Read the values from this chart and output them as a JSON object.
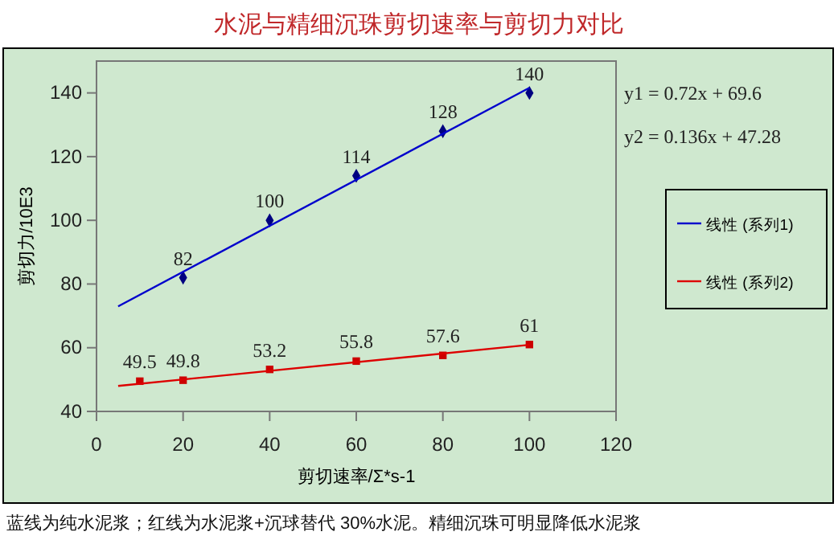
{
  "chart_data": {
    "type": "scatter",
    "title": "水泥与精细沉珠剪切速率与剪切力对比",
    "xlabel": "剪切速率/Σ*s-1",
    "ylabel": "剪切力/10E3",
    "xlim": [
      0,
      120
    ],
    "xticks": [
      0,
      20,
      40,
      60,
      80,
      100,
      120
    ],
    "ylim": [
      40,
      150
    ],
    "yticks": [
      40,
      60,
      80,
      100,
      120,
      140
    ],
    "grid": false,
    "legend": "right",
    "annotations": [
      "y1 = 0.72x + 69.6",
      "y2 = 0.136x + 47.28",
      "蓝线为纯水泥浆；红线为水泥浆+沉球替代 30%水泥。精细沉珠可明显降低水泥浆"
    ],
    "series": [
      {
        "color": "#000080",
        "marker": "diamond",
        "x": [
          20,
          40,
          60,
          80,
          100
        ],
        "values": [
          82,
          100,
          114,
          128,
          140
        ],
        "value_labels": [
          "82",
          "100",
          "114",
          "128",
          "140"
        ]
      },
      {
        "color": "#cc0000",
        "marker": "square",
        "x": [
          10,
          20,
          40,
          60,
          80,
          100
        ],
        "values": [
          49.5,
          49.8,
          53.2,
          55.8,
          57.6,
          61
        ],
        "value_labels": [
          "49.5",
          "49.8",
          "53.2",
          "55.8",
          "57.6",
          "61"
        ]
      },
      {
        "type": "line",
        "name": "线性 (系列1)",
        "color": "#0000cc",
        "marker": "none",
        "x": [
          5,
          100
        ],
        "values": [
          73,
          141.6
        ]
      },
      {
        "type": "line",
        "name": "线性 (系列2)",
        "color": "#dd0000",
        "marker": "none",
        "x": [
          5,
          100
        ],
        "values": [
          48,
          60.9
        ]
      }
    ]
  }
}
